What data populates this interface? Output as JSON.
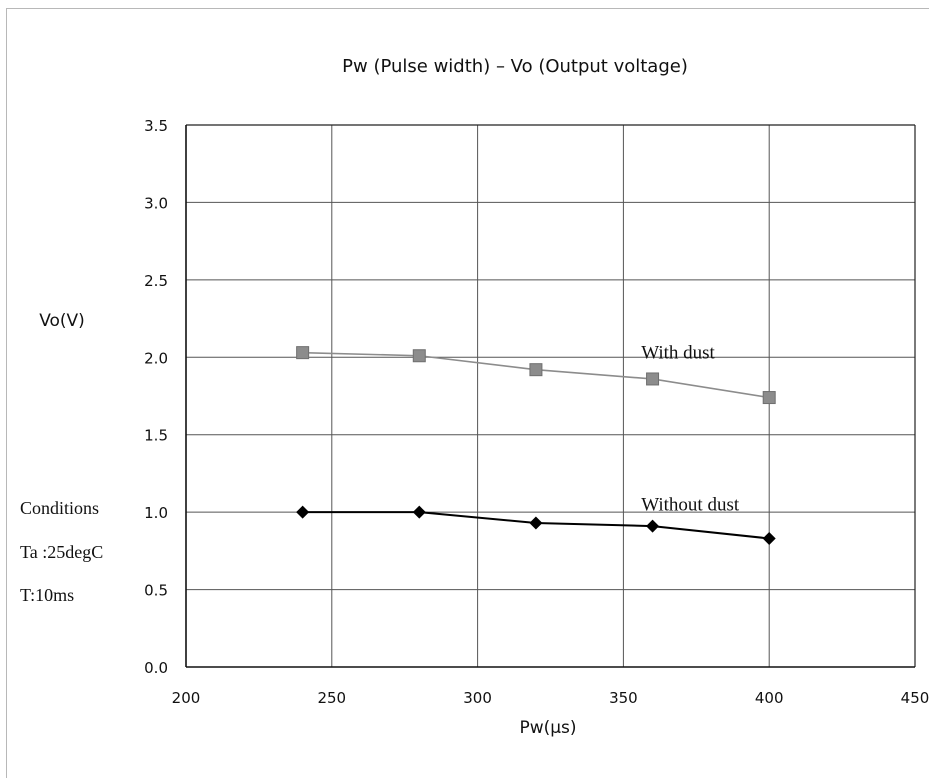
{
  "chart_data": {
    "type": "line",
    "title": "Pw (Pulse width) – Vo (Output voltage)",
    "xlabel": "Pw(μs)",
    "ylabel": "Vo(V)",
    "xlim": [
      200,
      450
    ],
    "ylim": [
      0.0,
      3.5
    ],
    "xticks": [
      "200",
      "250",
      "300",
      "350",
      "400",
      "450"
    ],
    "yticks": [
      "0.0",
      "0.5",
      "1.0",
      "1.5",
      "2.0",
      "2.5",
      "3.0",
      "3.5"
    ],
    "grid": true,
    "x": [
      240,
      280,
      320,
      360,
      400
    ],
    "series": [
      {
        "name": "With dust",
        "values": [
          2.03,
          2.01,
          1.92,
          1.86,
          1.74
        ],
        "marker": "square",
        "color": "#8c8c8c"
      },
      {
        "name": "Without dust",
        "values": [
          1.0,
          1.0,
          0.93,
          0.91,
          0.83
        ],
        "marker": "diamond",
        "color": "#000000"
      }
    ]
  },
  "annotations": {
    "conditions_title": "Conditions",
    "conditions": [
      "Ta :25degC",
      "T:10ms"
    ]
  }
}
